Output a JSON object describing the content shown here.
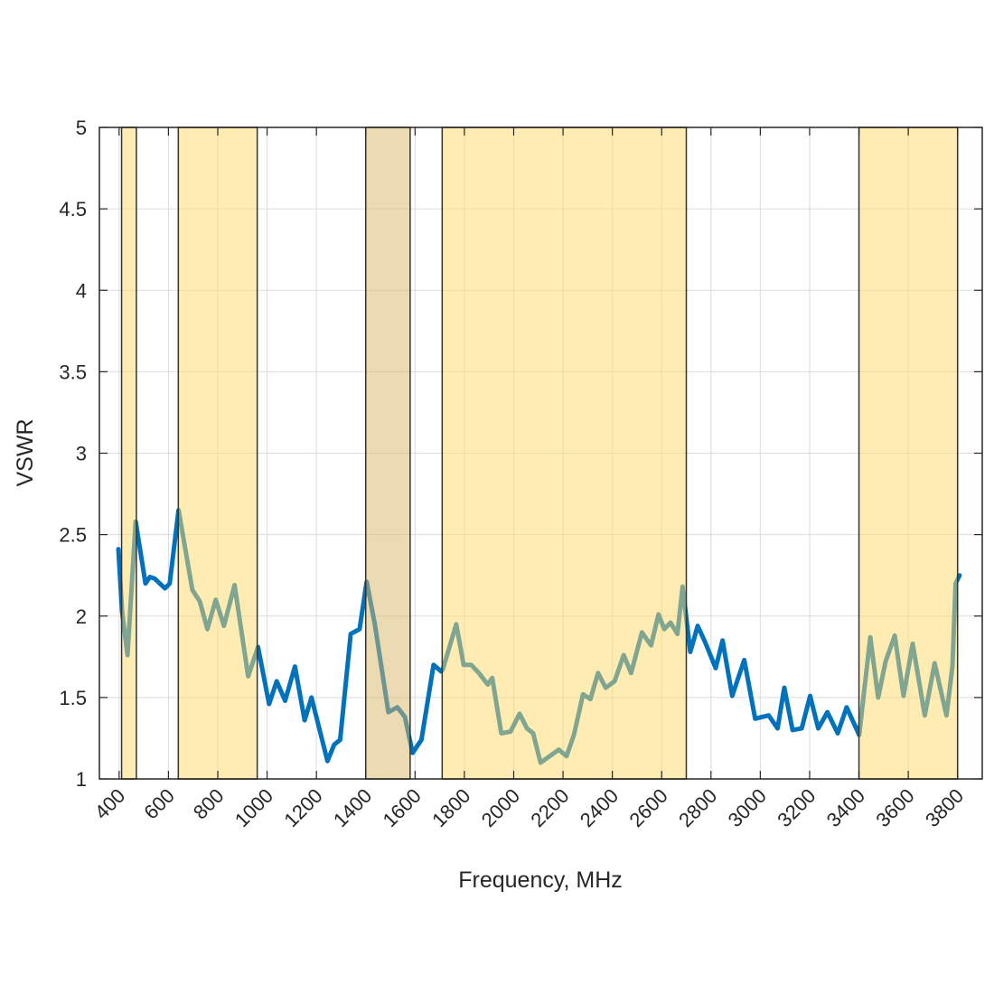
{
  "chart_data": {
    "type": "line",
    "title": "",
    "xlabel": "Frequency, MHz",
    "ylabel": "VSWR",
    "xlim": [
      320,
      3900
    ],
    "ylim": [
      1,
      5
    ],
    "grid": true,
    "xticks": [
      400,
      600,
      800,
      1000,
      1200,
      1400,
      1600,
      1800,
      2000,
      2200,
      2400,
      2600,
      2800,
      3000,
      3200,
      3400,
      3600,
      3800
    ],
    "xtick_labels": [
      "400",
      "600",
      "800",
      "1000",
      "1200",
      "1400",
      "1600",
      "1800",
      "2000",
      "2200",
      "2400",
      "2600",
      "2800",
      "3000",
      "3200",
      "3400",
      "3600",
      "3800"
    ],
    "yticks": [
      1,
      1.5,
      2,
      2.5,
      3,
      3.5,
      4,
      4.5,
      5
    ],
    "ytick_labels": [
      "1",
      "1.5",
      "2",
      "2.5",
      "3",
      "3.5",
      "4",
      "4.5",
      "5"
    ],
    "colors": {
      "line": "#0072bd",
      "band": "#ffd966",
      "band_dark": "#d9b866",
      "axis": "#262626",
      "grid": "#dcdcdc"
    },
    "bands": [
      {
        "range": [
          410,
          470
        ],
        "shade": "band"
      },
      {
        "range": [
          640,
          960
        ],
        "shade": "band"
      },
      {
        "range": [
          1400,
          1580
        ],
        "shade": "band_dark"
      },
      {
        "range": [
          1710,
          2700
        ],
        "shade": "band"
      },
      {
        "range": [
          3400,
          3800
        ],
        "shade": "band"
      }
    ],
    "series": [
      {
        "name": "VSWR",
        "x": [
          397,
          412,
          434,
          467,
          507,
          525,
          544,
          586,
          605,
          641,
          697,
          727,
          758,
          792,
          825,
          868,
          923,
          963,
          1008,
          1039,
          1073,
          1113,
          1152,
          1180,
          1245,
          1272,
          1296,
          1339,
          1375,
          1404,
          1437,
          1492,
          1528,
          1559,
          1590,
          1626,
          1675,
          1706,
          1712,
          1767,
          1797,
          1828,
          1859,
          1895,
          1913,
          1950,
          1987,
          2024,
          2054,
          2079,
          2109,
          2146,
          2183,
          2214,
          2244,
          2281,
          2311,
          2342,
          2373,
          2409,
          2446,
          2476,
          2520,
          2557,
          2587,
          2611,
          2636,
          2664,
          2685,
          2716,
          2746,
          2776,
          2819,
          2847,
          2886,
          2935,
          2979,
          3034,
          3070,
          3097,
          3131,
          3168,
          3202,
          3235,
          3272,
          3314,
          3350,
          3401,
          3446,
          3478,
          3508,
          3545,
          3581,
          3618,
          3667,
          3707,
          3755,
          3779,
          3792,
          3808
        ],
        "y": [
          2.41,
          2.03,
          1.76,
          2.58,
          2.2,
          2.24,
          2.23,
          2.17,
          2.2,
          2.65,
          2.16,
          2.09,
          1.92,
          2.1,
          1.94,
          2.19,
          1.63,
          1.81,
          1.46,
          1.6,
          1.48,
          1.69,
          1.36,
          1.5,
          1.11,
          1.21,
          1.24,
          1.89,
          1.92,
          2.21,
          1.95,
          1.41,
          1.44,
          1.38,
          1.16,
          1.24,
          1.7,
          1.66,
          1.67,
          1.95,
          1.7,
          1.7,
          1.65,
          1.58,
          1.62,
          1.28,
          1.29,
          1.4,
          1.31,
          1.28,
          1.1,
          1.14,
          1.18,
          1.14,
          1.27,
          1.52,
          1.49,
          1.65,
          1.56,
          1.6,
          1.76,
          1.65,
          1.9,
          1.82,
          2.01,
          1.92,
          1.96,
          1.89,
          2.18,
          1.78,
          1.94,
          1.84,
          1.68,
          1.85,
          1.51,
          1.73,
          1.37,
          1.39,
          1.31,
          1.56,
          1.3,
          1.31,
          1.51,
          1.31,
          1.41,
          1.28,
          1.44,
          1.27,
          1.87,
          1.5,
          1.72,
          1.88,
          1.51,
          1.83,
          1.39,
          1.71,
          1.39,
          1.69,
          2.2,
          2.25
        ]
      }
    ]
  }
}
